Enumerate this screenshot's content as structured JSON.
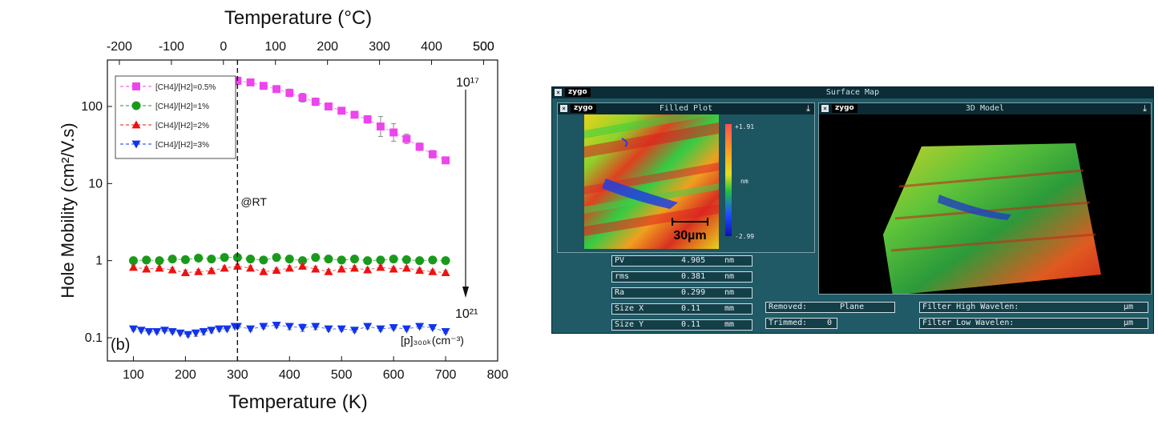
{
  "chart_data": {
    "type": "scatter",
    "title": "",
    "top_axis_title": "Temperature (°C)",
    "top_ticks": [
      "-200",
      "-100",
      "0",
      "100",
      "200",
      "300",
      "400",
      "500"
    ],
    "xlabel": "Temperature (K)",
    "ylabel": "Hole  Mobility (cm²/V.s)",
    "x_ticks": [
      "100",
      "200",
      "300",
      "400",
      "500",
      "600",
      "700",
      "800"
    ],
    "y_ticks": [
      "0.1",
      "1",
      "10",
      "100"
    ],
    "xlim": [
      50,
      800
    ],
    "ylim": [
      0.05,
      400
    ],
    "yscale": "log",
    "panel_label": "(b)",
    "rt_label": "@RT",
    "rt_x": 300,
    "arrow_top_label": "10¹⁷",
    "arrow_bottom_label": "10²¹",
    "concentration_label": "[p]₃₀₀ₖ(cm⁻³)",
    "series": [
      {
        "name": "[CH4]/[H2]=0.5%",
        "color": "#ee44ee",
        "marker": "square",
        "x": [
          300,
          325,
          350,
          375,
          400,
          425,
          450,
          475,
          500,
          525,
          550,
          575,
          600,
          625,
          650,
          675,
          700
        ],
        "y": [
          215,
          205,
          185,
          168,
          150,
          130,
          115,
          100,
          88,
          78,
          68,
          55,
          46,
          38,
          30,
          24,
          20
        ],
        "err": [
          0.12,
          0.08,
          0.08,
          0.1,
          0.12,
          0.14,
          0.12,
          0.1,
          0.08,
          0.1,
          0.12,
          0.35,
          0.3,
          0.15,
          0.12,
          0.12,
          0.1
        ]
      },
      {
        "name": "[CH4]/[H2]=1%",
        "color": "#1a9a1a",
        "marker": "circle",
        "x": [
          100,
          125,
          150,
          175,
          200,
          225,
          250,
          275,
          300,
          325,
          350,
          375,
          400,
          425,
          450,
          475,
          500,
          525,
          550,
          575,
          600,
          625,
          650,
          675,
          700
        ],
        "y": [
          1.0,
          1.02,
          1.0,
          1.05,
          1.03,
          1.08,
          1.05,
          1.1,
          1.1,
          1.05,
          1.02,
          1.1,
          1.05,
          1.0,
          1.1,
          1.05,
          1.02,
          1.05,
          1.0,
          1.02,
          1.05,
          1.03,
          1.0,
          1.02,
          1.0
        ],
        "err": [
          0.05,
          0.06,
          0.06,
          0.07,
          0.06,
          0.07,
          0.06,
          0.08,
          0.07,
          0.06,
          0.06,
          0.07,
          0.07,
          0.06,
          0.08,
          0.07,
          0.06,
          0.07,
          0.06,
          0.06,
          0.07,
          0.06,
          0.06,
          0.06,
          0.06
        ]
      },
      {
        "name": "[CH4]/[H2]=2%",
        "color": "#ee1111",
        "marker": "triangle-up",
        "x": [
          100,
          125,
          150,
          175,
          200,
          225,
          250,
          275,
          300,
          325,
          350,
          375,
          400,
          425,
          450,
          475,
          500,
          525,
          550,
          575,
          600,
          625,
          650,
          675,
          700
        ],
        "y": [
          0.82,
          0.78,
          0.8,
          0.76,
          0.7,
          0.72,
          0.74,
          0.8,
          0.85,
          0.8,
          0.72,
          0.75,
          0.8,
          0.85,
          0.78,
          0.72,
          0.78,
          0.8,
          0.76,
          0.82,
          0.78,
          0.8,
          0.75,
          0.72,
          0.7
        ],
        "err": [
          0.06,
          0.06,
          0.06,
          0.07,
          0.08,
          0.07,
          0.07,
          0.07,
          0.06,
          0.07,
          0.07,
          0.07,
          0.08,
          0.1,
          0.08,
          0.07,
          0.07,
          0.07,
          0.06,
          0.07,
          0.06,
          0.06,
          0.06,
          0.06,
          0.06
        ]
      },
      {
        "name": "[CH4]/[H2]=3%",
        "color": "#1133ee",
        "marker": "triangle-down",
        "x": [
          100,
          115,
          130,
          145,
          160,
          175,
          190,
          205,
          220,
          235,
          250,
          265,
          280,
          295,
          300,
          325,
          350,
          375,
          400,
          425,
          450,
          475,
          500,
          525,
          550,
          575,
          600,
          625,
          650,
          675,
          700
        ],
        "y": [
          0.13,
          0.125,
          0.12,
          0.12,
          0.125,
          0.12,
          0.115,
          0.11,
          0.115,
          0.12,
          0.125,
          0.13,
          0.13,
          0.14,
          0.14,
          0.13,
          0.14,
          0.145,
          0.14,
          0.135,
          0.14,
          0.13,
          0.13,
          0.125,
          0.14,
          0.13,
          0.135,
          0.13,
          0.14,
          0.135,
          0.12
        ],
        "err": [
          0.05,
          0.04,
          0.04,
          0.05,
          0.04,
          0.05,
          0.05,
          0.07,
          0.1,
          0.1,
          0.08,
          0.07,
          0.06,
          0.05,
          0.06,
          0.06,
          0.06,
          0.07,
          0.1,
          0.12,
          0.1,
          0.06,
          0.06,
          0.06,
          0.07,
          0.06,
          0.05,
          0.05,
          0.06,
          0.05,
          0.05
        ]
      }
    ]
  },
  "zygo": {
    "window_title": "Surface Map",
    "logo": "zygo",
    "panel_left_title": "Filled Plot",
    "panel_right_title": "3D Model",
    "scale_top": "+1.91",
    "scale_unit": "nm",
    "scale_bottom": "-2.99",
    "scalebar_label": "30µm",
    "stats": [
      {
        "label": "PV",
        "value": "4.905",
        "unit": "nm"
      },
      {
        "label": "rms",
        "value": "0.381",
        "unit": "nm"
      },
      {
        "label": "Ra",
        "value": "0.299",
        "unit": "nm"
      },
      {
        "label": "Size X",
        "value": "0.11",
        "unit": "mm"
      },
      {
        "label": "Size Y",
        "value": "0.11",
        "unit": "mm"
      }
    ],
    "removed_label": "Removed:",
    "removed_value": "Plane",
    "trimmed_label": "Trimmed:",
    "trimmed_value": "0",
    "filter_high_label": "Filter High Wavelen:",
    "filter_high_unit": "µm",
    "filter_low_label": "Filter Low  Wavelen:",
    "filter_low_unit": "µm"
  }
}
